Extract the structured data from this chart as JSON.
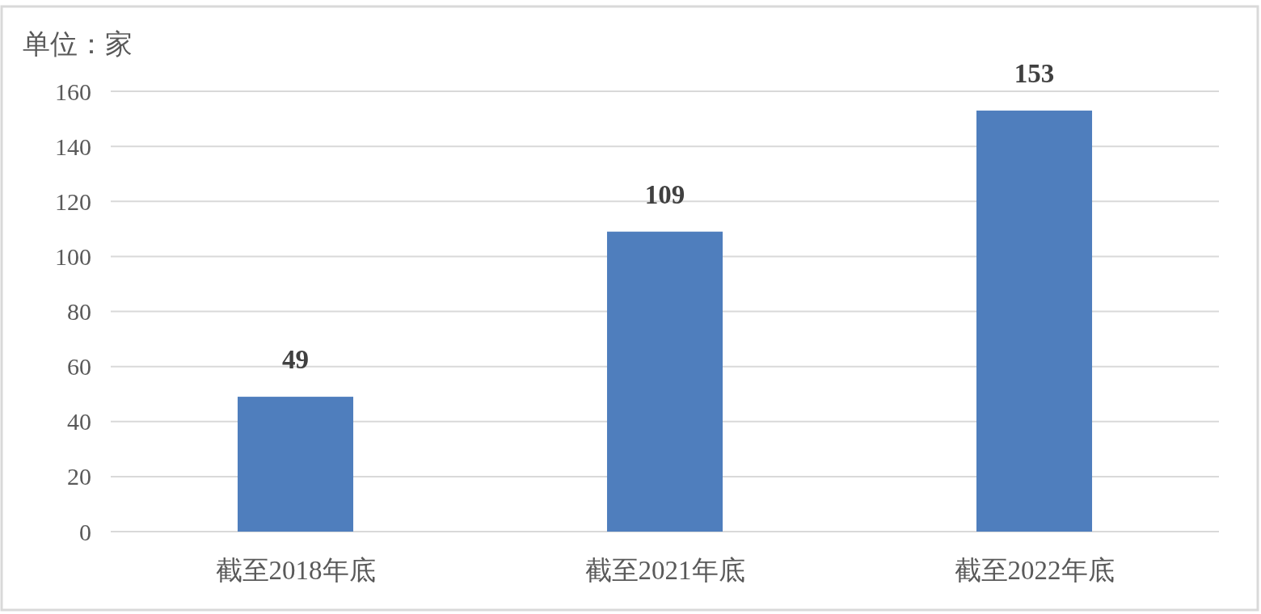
{
  "chart_data": {
    "type": "bar",
    "ylabel": "单位：家",
    "categories": [
      "截至2018年底",
      "截至2021年底",
      "截至2022年底"
    ],
    "values": [
      49,
      109,
      153
    ],
    "color": "#4f7ebd",
    "ylim": [
      0,
      160
    ],
    "yticks": [
      0,
      20,
      40,
      60,
      80,
      100,
      120,
      140,
      160
    ],
    "grid": "y",
    "data_labels": true
  }
}
